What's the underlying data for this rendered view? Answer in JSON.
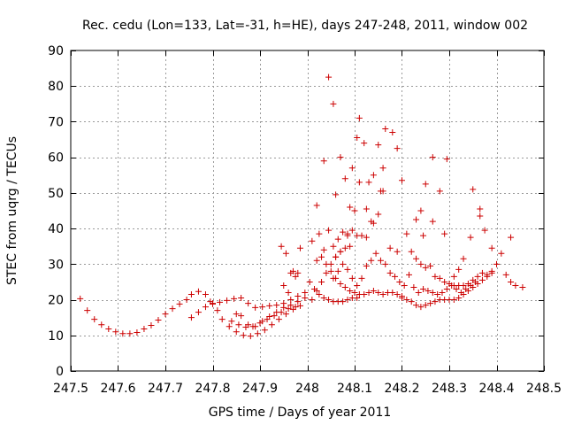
{
  "chart_data": {
    "type": "scatter",
    "title": "Rec. cedu (Lon=133, Lat=-31, h=HE), days 247-248, 2011, window 002",
    "xlabel": "GPS time / Days of year 2011",
    "ylabel": "STEC from uqrg / TECUs",
    "xlim": [
      247.5,
      248.5
    ],
    "ylim": [
      0,
      90
    ],
    "x_ticks": [
      247.5,
      247.6,
      247.7,
      247.8,
      247.9,
      248.0,
      248.1,
      248.2,
      248.3,
      248.4,
      248.5
    ],
    "x_tick_labels": [
      "247.5",
      "247.6",
      "247.7",
      "247.8",
      "247.9",
      "248",
      "248.1",
      "248.2",
      "248.3",
      "248.4",
      "248.5"
    ],
    "y_ticks": [
      0,
      10,
      20,
      30,
      40,
      50,
      60,
      70,
      80,
      90
    ],
    "y_tick_labels": [
      "0",
      "10",
      "20",
      "30",
      "40",
      "50",
      "60",
      "70",
      "80",
      "90"
    ],
    "grid": true,
    "marker": "+",
    "color": "#cc0000",
    "series": [
      {
        "name": "STEC",
        "points": [
          [
            247.52,
            20.3
          ],
          [
            247.535,
            17
          ],
          [
            247.55,
            14.5
          ],
          [
            247.565,
            13
          ],
          [
            247.58,
            11.8
          ],
          [
            247.595,
            11
          ],
          [
            247.61,
            10.5
          ],
          [
            247.625,
            10.5
          ],
          [
            247.64,
            10.8
          ],
          [
            247.655,
            11.8
          ],
          [
            247.67,
            12.8
          ],
          [
            247.685,
            14.3
          ],
          [
            247.7,
            16
          ],
          [
            247.715,
            17.5
          ],
          [
            247.73,
            18.8
          ],
          [
            247.745,
            20
          ],
          [
            247.755,
            21.5
          ],
          [
            247.77,
            22.3
          ],
          [
            247.785,
            21.5
          ],
          [
            247.795,
            19.5
          ],
          [
            247.755,
            15
          ],
          [
            247.77,
            16.5
          ],
          [
            247.785,
            18
          ],
          [
            247.8,
            18.8
          ],
          [
            247.815,
            19.3
          ],
          [
            247.83,
            19.8
          ],
          [
            247.845,
            20.3
          ],
          [
            247.86,
            20.5
          ],
          [
            247.875,
            19
          ],
          [
            247.89,
            17.8
          ],
          [
            247.905,
            18
          ],
          [
            247.92,
            18.3
          ],
          [
            247.935,
            18.5
          ],
          [
            247.95,
            19
          ],
          [
            247.965,
            20
          ],
          [
            247.98,
            21
          ],
          [
            247.995,
            22
          ],
          [
            247.8,
            19
          ],
          [
            247.81,
            17
          ],
          [
            247.82,
            14.5
          ],
          [
            247.835,
            12.5
          ],
          [
            247.85,
            11
          ],
          [
            247.865,
            10
          ],
          [
            247.88,
            9.8
          ],
          [
            247.895,
            10.5
          ],
          [
            247.91,
            11.5
          ],
          [
            247.925,
            13
          ],
          [
            247.94,
            14.5
          ],
          [
            247.955,
            16
          ],
          [
            247.97,
            17.3
          ],
          [
            247.985,
            18.3
          ],
          [
            247.84,
            14
          ],
          [
            247.855,
            13
          ],
          [
            247.87,
            12.3
          ],
          [
            247.885,
            12.5
          ],
          [
            247.9,
            13.5
          ],
          [
            247.915,
            14.5
          ],
          [
            247.93,
            15.5
          ],
          [
            247.945,
            16.5
          ],
          [
            247.96,
            17.5
          ],
          [
            247.975,
            18
          ],
          [
            247.85,
            16
          ],
          [
            247.86,
            15.5
          ],
          [
            247.875,
            13
          ],
          [
            247.89,
            12.5
          ],
          [
            247.905,
            14
          ],
          [
            247.92,
            15.3
          ],
          [
            247.935,
            16.5
          ],
          [
            247.95,
            17.8
          ],
          [
            247.965,
            18.5
          ],
          [
            247.98,
            19.5
          ],
          [
            247.995,
            20.5
          ],
          [
            247.945,
            35
          ],
          [
            247.955,
            33
          ],
          [
            247.965,
            27.5
          ],
          [
            247.975,
            26.5
          ],
          [
            247.985,
            34.5
          ],
          [
            247.95,
            24
          ],
          [
            247.96,
            22
          ],
          [
            247.97,
            28
          ],
          [
            247.98,
            27.5
          ],
          [
            248.01,
            36.5
          ],
          [
            248.02,
            31
          ],
          [
            248.03,
            32
          ],
          [
            248.04,
            30
          ],
          [
            248.05,
            28
          ],
          [
            248.06,
            26
          ],
          [
            248.07,
            24.5
          ],
          [
            248.08,
            23.5
          ],
          [
            248.09,
            22.5
          ],
          [
            248.1,
            22
          ],
          [
            248.11,
            21.5
          ],
          [
            248.12,
            21.5
          ],
          [
            248.13,
            22
          ],
          [
            248.14,
            22.5
          ],
          [
            248.15,
            22
          ],
          [
            248.16,
            21.5
          ],
          [
            248.17,
            22
          ],
          [
            248.18,
            22
          ],
          [
            248.19,
            21.5
          ],
          [
            248.2,
            21
          ],
          [
            248.005,
            25
          ],
          [
            248.015,
            23
          ],
          [
            248.025,
            21.5
          ],
          [
            248.035,
            20.5
          ],
          [
            248.045,
            20
          ],
          [
            248.055,
            19.5
          ],
          [
            248.065,
            19.5
          ],
          [
            248.075,
            19.5
          ],
          [
            248.085,
            20
          ],
          [
            248.095,
            20.5
          ],
          [
            248.105,
            20.5
          ],
          [
            248.01,
            20
          ],
          [
            248.02,
            22.5
          ],
          [
            248.03,
            25
          ],
          [
            248.04,
            27.5
          ],
          [
            248.05,
            30
          ],
          [
            248.06,
            32
          ],
          [
            248.07,
            33.5
          ],
          [
            248.08,
            34.5
          ],
          [
            248.09,
            35
          ],
          [
            248.02,
            46.5
          ],
          [
            248.035,
            59
          ],
          [
            248.045,
            82.5
          ],
          [
            248.055,
            75
          ],
          [
            248.06,
            49.5
          ],
          [
            248.07,
            60
          ],
          [
            248.08,
            54
          ],
          [
            248.09,
            46
          ],
          [
            248.095,
            57
          ],
          [
            248.105,
            65.5
          ],
          [
            248.11,
            71
          ],
          [
            248.12,
            64
          ],
          [
            248.13,
            53
          ],
          [
            248.14,
            55
          ],
          [
            248.15,
            63.5
          ],
          [
            248.16,
            57
          ],
          [
            248.165,
            68
          ],
          [
            248.18,
            67
          ],
          [
            248.19,
            62.5
          ],
          [
            248.2,
            53.5
          ],
          [
            248.025,
            38.5
          ],
          [
            248.035,
            34
          ],
          [
            248.045,
            39.5
          ],
          [
            248.055,
            35
          ],
          [
            248.065,
            37
          ],
          [
            248.075,
            39
          ],
          [
            248.085,
            38.5
          ],
          [
            248.095,
            39.5
          ],
          [
            248.105,
            38
          ],
          [
            248.115,
            38
          ],
          [
            248.125,
            37.5
          ],
          [
            248.14,
            41.5
          ],
          [
            248.15,
            44
          ],
          [
            248.16,
            50.5
          ],
          [
            248.175,
            34.5
          ],
          [
            248.19,
            33.5
          ],
          [
            248.055,
            26
          ],
          [
            248.065,
            28
          ],
          [
            248.075,
            30
          ],
          [
            248.085,
            28.5
          ],
          [
            248.095,
            26
          ],
          [
            248.105,
            24
          ],
          [
            248.115,
            26
          ],
          [
            248.125,
            29.5
          ],
          [
            248.135,
            31
          ],
          [
            248.145,
            33
          ],
          [
            248.155,
            31
          ],
          [
            248.165,
            30
          ],
          [
            248.175,
            27.5
          ],
          [
            248.185,
            26.5
          ],
          [
            248.195,
            25
          ],
          [
            248.205,
            24
          ],
          [
            248.06,
            32
          ],
          [
            248.07,
            33.5
          ],
          [
            248.085,
            38
          ],
          [
            248.1,
            45
          ],
          [
            248.11,
            53
          ],
          [
            248.125,
            45.5
          ],
          [
            248.135,
            42
          ],
          [
            248.155,
            50.5
          ],
          [
            248.21,
            38.5
          ],
          [
            248.22,
            33.5
          ],
          [
            248.23,
            31.5
          ],
          [
            248.24,
            30
          ],
          [
            248.25,
            29
          ],
          [
            248.26,
            29.5
          ],
          [
            248.27,
            26.5
          ],
          [
            248.28,
            26
          ],
          [
            248.29,
            25
          ],
          [
            248.3,
            24.5
          ],
          [
            248.31,
            24
          ],
          [
            248.32,
            24
          ],
          [
            248.33,
            24
          ],
          [
            248.34,
            24.5
          ],
          [
            248.35,
            25.5
          ],
          [
            248.36,
            26.5
          ],
          [
            248.37,
            27.5
          ],
          [
            248.38,
            27
          ],
          [
            248.39,
            28
          ],
          [
            248.2,
            20.5
          ],
          [
            248.21,
            20
          ],
          [
            248.22,
            19.5
          ],
          [
            248.23,
            18.5
          ],
          [
            248.24,
            18
          ],
          [
            248.25,
            18.5
          ],
          [
            248.26,
            19
          ],
          [
            248.27,
            19.5
          ],
          [
            248.28,
            20
          ],
          [
            248.29,
            20
          ],
          [
            248.3,
            20
          ],
          [
            248.31,
            20
          ],
          [
            248.32,
            20.5
          ],
          [
            248.33,
            21.5
          ],
          [
            248.34,
            22.5
          ],
          [
            248.35,
            23.5
          ],
          [
            248.36,
            24.5
          ],
          [
            248.37,
            25.5
          ],
          [
            248.38,
            26.5
          ],
          [
            248.39,
            27.5
          ],
          [
            248.4,
            30
          ],
          [
            248.41,
            33
          ],
          [
            248.42,
            27
          ],
          [
            248.43,
            25
          ],
          [
            248.44,
            24
          ],
          [
            248.455,
            23.5
          ],
          [
            248.23,
            42.5
          ],
          [
            248.24,
            45
          ],
          [
            248.245,
            38
          ],
          [
            248.25,
            52.5
          ],
          [
            248.265,
            60
          ],
          [
            248.265,
            42
          ],
          [
            248.28,
            50.5
          ],
          [
            248.29,
            38.5
          ],
          [
            248.295,
            59.5
          ],
          [
            248.31,
            26.5
          ],
          [
            248.32,
            28.5
          ],
          [
            248.33,
            31.5
          ],
          [
            248.345,
            37.5
          ],
          [
            248.35,
            51
          ],
          [
            248.365,
            45.5
          ],
          [
            248.375,
            39.5
          ],
          [
            248.39,
            34.5
          ],
          [
            248.43,
            37.5
          ],
          [
            248.215,
            27
          ],
          [
            248.225,
            23.5
          ],
          [
            248.235,
            22
          ],
          [
            248.245,
            23
          ],
          [
            248.255,
            22.5
          ],
          [
            248.265,
            22
          ],
          [
            248.275,
            21.5
          ],
          [
            248.285,
            22
          ],
          [
            248.295,
            23
          ],
          [
            248.305,
            24
          ],
          [
            248.315,
            23
          ],
          [
            248.325,
            22
          ],
          [
            248.335,
            23
          ],
          [
            248.345,
            24
          ],
          [
            248.355,
            25
          ],
          [
            248.365,
            43.5
          ]
        ]
      }
    ]
  }
}
